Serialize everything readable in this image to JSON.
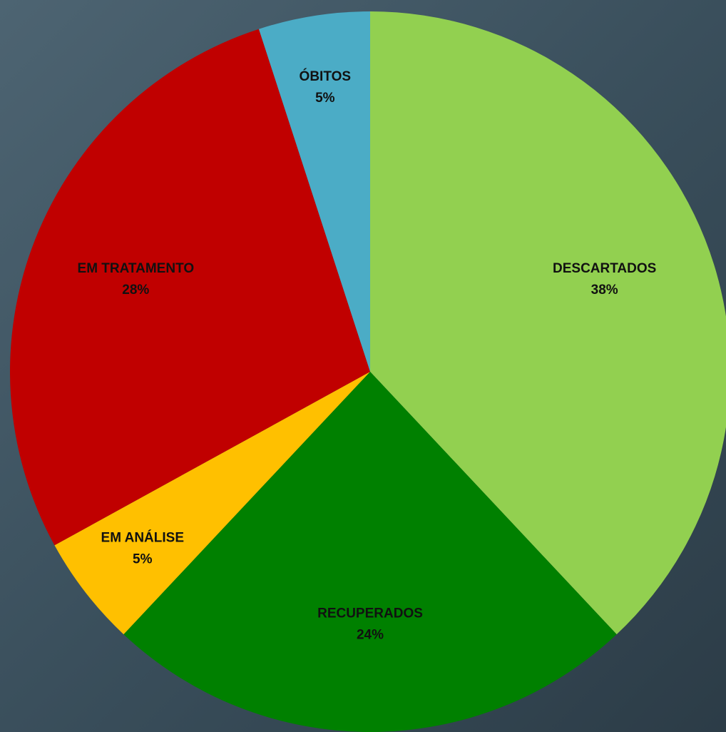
{
  "chart_data": {
    "type": "pie",
    "categories": [
      "DESCARTADOS",
      "RECUPERADOS",
      "EM ANÁLISE",
      "EM TRATAMENTO",
      "ÓBITOS"
    ],
    "values": [
      38,
      24,
      5,
      28,
      5
    ],
    "value_labels": [
      "38%",
      "24%",
      "5%",
      "28%",
      "5%"
    ],
    "colors": [
      "#92d050",
      "#008000",
      "#ffc000",
      "#c00000",
      "#4bacc6"
    ]
  }
}
